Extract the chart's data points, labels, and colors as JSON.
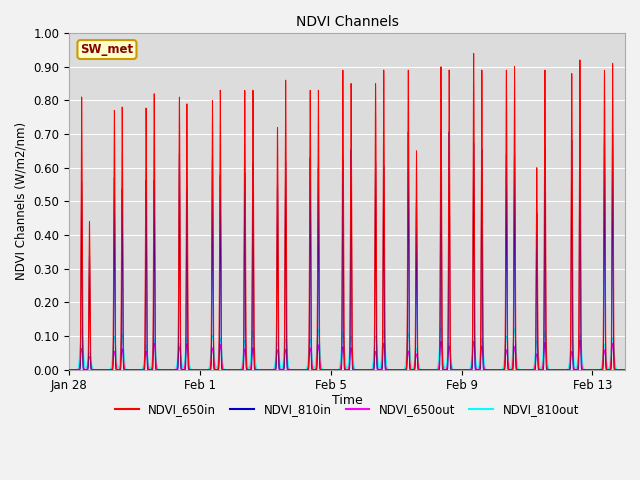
{
  "title": "NDVI Channels",
  "xlabel": "Time",
  "ylabel": "NDVI Channels (W/m2/nm)",
  "ylim": [
    0.0,
    1.0
  ],
  "bg_color": "#dcdcdc",
  "plot_bg_color": "#dcdcdc",
  "annotation_label": "SW_met",
  "annotation_bg": "#ffffcc",
  "annotation_border": "#cc9900",
  "series_colors": {
    "NDVI_650in": "#ff0000",
    "NDVI_810in": "#0000cc",
    "NDVI_650out": "#ff00ff",
    "NDVI_810out": "#00ffff"
  },
  "legend_labels": [
    "NDVI_650in",
    "NDVI_810in",
    "NDVI_650out",
    "NDVI_810out"
  ],
  "xtick_labels": [
    "Jan 28",
    "Feb 1",
    "Feb 5",
    "Feb 9",
    "Feb 13"
  ],
  "xtick_positions": [
    0,
    4,
    8,
    12,
    16
  ],
  "ytick_values": [
    0.0,
    0.1,
    0.2,
    0.3,
    0.4,
    0.5,
    0.6,
    0.7,
    0.8,
    0.9,
    1.0
  ],
  "num_days": 17,
  "figsize": [
    6.4,
    4.8
  ],
  "dpi": 100
}
